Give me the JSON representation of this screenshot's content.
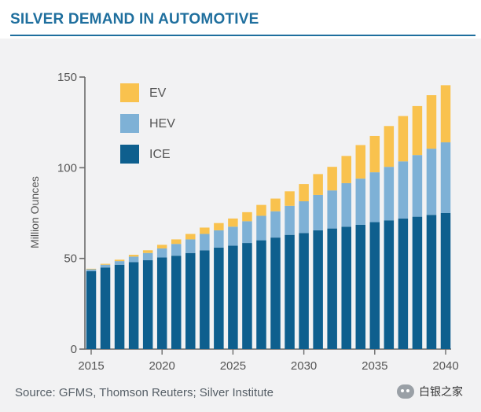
{
  "title": "SILVER DEMAND IN AUTOMOTIVE",
  "source": "Source: GFMS, Thomson Reuters; Silver Institute",
  "watermark": {
    "icon": "wechat-icon",
    "text": "白银之家"
  },
  "colors": {
    "title": "#1f6f9e",
    "ICE": "#0e5f8e",
    "HEV": "#7eb1d6",
    "EV": "#f9c24e",
    "axis": "#6b6b6b",
    "panel": "#f2f2f3"
  },
  "chart_data": {
    "type": "bar",
    "stacked": true,
    "ylabel": "Million Ounces",
    "xlabel": "",
    "ylim": [
      0,
      150
    ],
    "yticks": [
      0,
      50,
      100,
      150
    ],
    "xticks": [
      2015,
      2020,
      2025,
      2030,
      2035,
      2040
    ],
    "grid": false,
    "legend_position": "top-left",
    "categories": [
      2015,
      2016,
      2017,
      2018,
      2019,
      2020,
      2021,
      2022,
      2023,
      2024,
      2025,
      2026,
      2027,
      2028,
      2029,
      2030,
      2031,
      2032,
      2033,
      2034,
      2035,
      2036,
      2037,
      2038,
      2039,
      2040
    ],
    "series": [
      {
        "name": "ICE",
        "values": [
          43,
          45,
          46.5,
          48,
          49,
          50.5,
          51.5,
          53,
          54.5,
          56,
          57,
          58.5,
          60,
          61.5,
          63,
          64,
          65.5,
          66.5,
          67.5,
          68.5,
          70,
          71,
          72,
          73,
          74,
          75
        ]
      },
      {
        "name": "HEV",
        "values": [
          1,
          1.5,
          2,
          3,
          4,
          5,
          6.5,
          7.5,
          9,
          9.5,
          10.5,
          12,
          13.5,
          14.5,
          16,
          17.5,
          19.5,
          21,
          24,
          25.5,
          27.5,
          29.5,
          31.5,
          34,
          36.5,
          39
        ]
      },
      {
        "name": "EV",
        "values": [
          0.3,
          0.5,
          0.8,
          1,
          1.5,
          2,
          2.5,
          3,
          3.5,
          4,
          4.5,
          5,
          6,
          7,
          8,
          9.5,
          11.5,
          13,
          15,
          18.5,
          20,
          22.5,
          25,
          27,
          29.5,
          31.5
        ]
      }
    ]
  }
}
